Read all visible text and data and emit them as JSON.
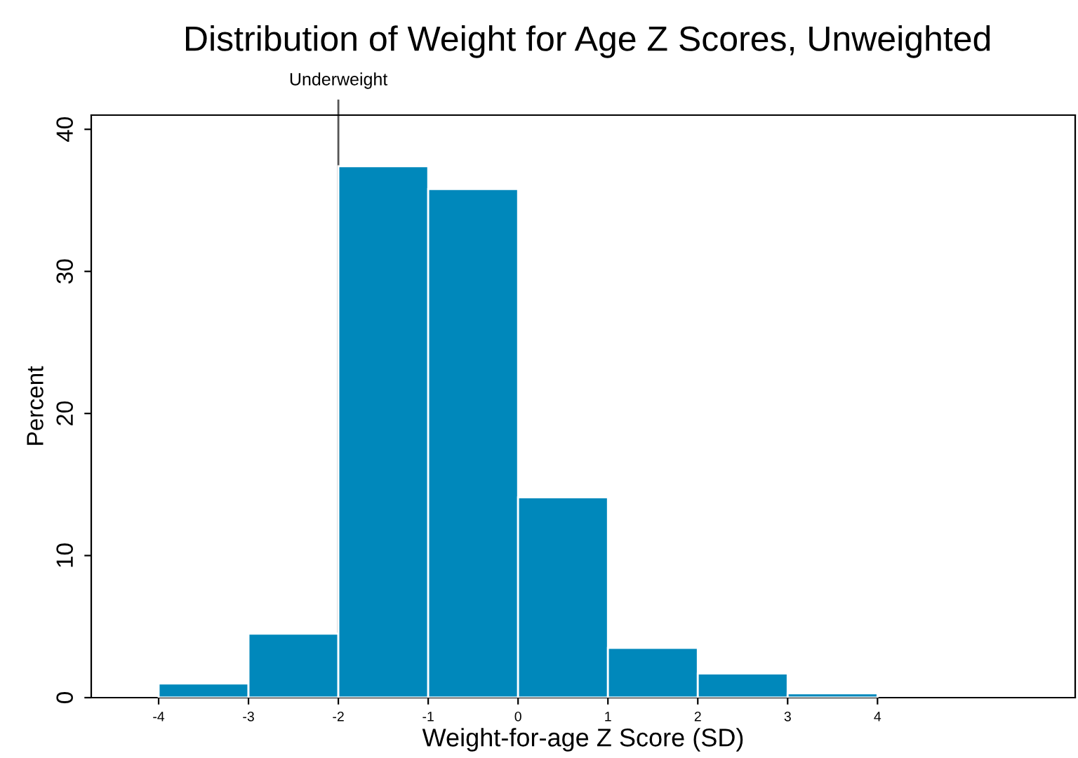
{
  "chart_data": {
    "type": "histogram",
    "title": "Distribution of Weight for Age Z Scores, Unweighted",
    "xlabel": "Weight-for-age Z Score (SD)",
    "ylabel": "Percent",
    "bins": [
      -4,
      -3,
      -2,
      -1,
      0,
      1,
      2,
      3,
      4
    ],
    "values": [
      1.0,
      4.5,
      37.4,
      35.8,
      14.1,
      3.5,
      1.7,
      0.3
    ],
    "color": "#0088bb",
    "xlim": [
      -4.75,
      6.2
    ],
    "xticks": [
      -4,
      -3,
      -2,
      -1,
      0,
      1,
      2,
      3,
      4
    ],
    "ylim": [
      0,
      41
    ],
    "yticks": [
      0,
      10,
      20,
      30,
      40
    ],
    "ref_lines": [
      {
        "axis": "x",
        "value": -2,
        "label": "Underweight",
        "color": "#555555"
      }
    ],
    "grid": false,
    "legend": false
  }
}
